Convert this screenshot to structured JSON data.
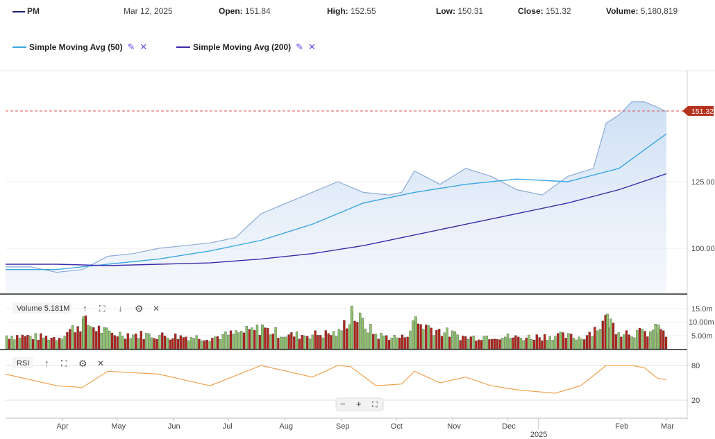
{
  "header": {
    "symbol": "PM",
    "date": "Mar 12, 2025",
    "open_label": "Open:",
    "open": "151.84",
    "high_label": "High:",
    "high": "152.55",
    "low_label": "Low:",
    "low": "150.31",
    "close_label": "Close:",
    "close": "151.32",
    "volume_label": "Volume:",
    "volume": "5,180,819",
    "symbol_color": "#1e1b6e"
  },
  "legend": [
    {
      "label": "Simple Moving Avg (50)",
      "color": "#39a6e3",
      "edit_icon": "pencil-icon",
      "remove_icon": "close-icon"
    },
    {
      "label": "Simple Moving Avg (200)",
      "color": "#3b2aa8",
      "edit_icon": "pencil-icon",
      "remove_icon": "close-icon"
    }
  ],
  "price_panel": {
    "last_price_label": "151.32",
    "last_price_color": "#c0392b",
    "y_ticks": [
      "100.00",
      "125.00"
    ]
  },
  "volume_panel": {
    "label": "Volume 5.181M",
    "y_ticks": [
      "15.0m",
      "10.00m",
      "5.00m"
    ],
    "up_color": "#8cc26a",
    "down_color": "#b0241b"
  },
  "rsi_panel": {
    "label": "RSI",
    "y_ticks": [
      "80",
      "20"
    ],
    "line_color": "#f0a04b"
  },
  "zoom_controls": {
    "minus": "−",
    "plus": "+",
    "fit": "⛶"
  },
  "x_axis": {
    "months": [
      "Apr",
      "May",
      "Jun",
      "Jul",
      "Aug",
      "Sep",
      "Oct",
      "Nov",
      "Dec",
      "Feb",
      "Mar"
    ],
    "year_label": "2025"
  },
  "chart_data": {
    "type": "line",
    "title": "",
    "series": [
      {
        "name": "PM",
        "x": [
          "2024-03-15",
          "2024-03-29",
          "2024-04-12",
          "2024-04-26",
          "2024-05-10",
          "2024-05-24",
          "2024-06-07",
          "2024-06-21",
          "2024-07-05",
          "2024-07-19",
          "2024-08-02",
          "2024-08-16",
          "2024-08-30",
          "2024-09-13",
          "2024-09-27",
          "2024-10-11",
          "2024-10-18",
          "2024-10-25",
          "2024-11-08",
          "2024-11-22",
          "2024-12-06",
          "2024-12-20",
          "2025-01-03",
          "2025-01-17",
          "2025-01-31",
          "2025-02-07",
          "2025-02-14",
          "2025-02-21",
          "2025-02-28",
          "2025-03-07",
          "2025-03-12"
        ],
        "values": [
          93,
          93,
          91,
          92,
          97,
          98,
          100,
          101,
          102,
          104,
          113,
          117,
          121,
          125,
          121,
          120,
          121,
          129,
          124,
          130,
          127,
          122,
          120,
          127,
          130,
          147,
          150,
          155,
          155,
          153,
          151.3
        ]
      },
      {
        "name": "Simple Moving Avg (50)",
        "x": [
          "2024-03-15",
          "2024-04-12",
          "2024-05-10",
          "2024-06-07",
          "2024-07-05",
          "2024-08-02",
          "2024-08-30",
          "2024-09-27",
          "2024-10-25",
          "2024-11-22",
          "2024-12-20",
          "2025-01-17",
          "2025-02-14",
          "2025-03-12"
        ],
        "values": [
          92,
          92,
          94,
          96,
          99,
          103,
          109,
          117,
          121,
          124,
          126,
          125,
          130,
          143
        ]
      },
      {
        "name": "Simple Moving Avg (200)",
        "x": [
          "2024-03-15",
          "2024-04-12",
          "2024-05-10",
          "2024-06-07",
          "2024-07-05",
          "2024-08-02",
          "2024-08-30",
          "2024-09-27",
          "2024-10-25",
          "2024-11-22",
          "2024-12-20",
          "2025-01-17",
          "2025-02-14",
          "2025-03-12"
        ],
        "values": [
          94,
          94,
          93.5,
          94,
          94.5,
          96,
          98,
          101,
          105,
          109,
          113,
          117,
          122,
          128
        ]
      }
    ],
    "rsi": {
      "x": [
        "2024-03-15",
        "2024-04-12",
        "2024-04-26",
        "2024-05-10",
        "2024-06-07",
        "2024-07-05",
        "2024-08-02",
        "2024-08-16",
        "2024-08-30",
        "2024-09-13",
        "2024-09-20",
        "2024-10-04",
        "2024-10-18",
        "2024-10-25",
        "2024-11-08",
        "2024-11-22",
        "2024-12-06",
        "2024-12-20",
        "2025-01-10",
        "2025-01-24",
        "2025-02-07",
        "2025-02-21",
        "2025-02-28",
        "2025-03-07",
        "2025-03-12"
      ],
      "values": [
        65,
        45,
        42,
        70,
        65,
        45,
        80,
        70,
        60,
        80,
        78,
        45,
        48,
        70,
        50,
        60,
        45,
        38,
        32,
        45,
        80,
        80,
        76,
        58,
        55
      ]
    },
    "volume_m": {
      "x": [
        "2024-03-15",
        "2024-04-12",
        "2024-04-26",
        "2024-05-10",
        "2024-06-07",
        "2024-07-05",
        "2024-08-02",
        "2024-08-16",
        "2024-09-13",
        "2024-09-20",
        "2024-10-04",
        "2024-10-18",
        "2024-10-25",
        "2024-11-08",
        "2024-11-22",
        "2024-12-06",
        "2024-12-20",
        "2025-01-10",
        "2025-01-24",
        "2025-02-07",
        "2025-02-14",
        "2025-02-28",
        "2025-03-07",
        "2025-03-12"
      ],
      "values": [
        6,
        5,
        12,
        7,
        6,
        5,
        9,
        6,
        7,
        16,
        6,
        5,
        12,
        8,
        5,
        6,
        5,
        6,
        5,
        13,
        8,
        7,
        9,
        5.2
      ]
    },
    "y_ticks": [
      100,
      125
    ],
    "last_close": 151.32,
    "grid": true
  }
}
